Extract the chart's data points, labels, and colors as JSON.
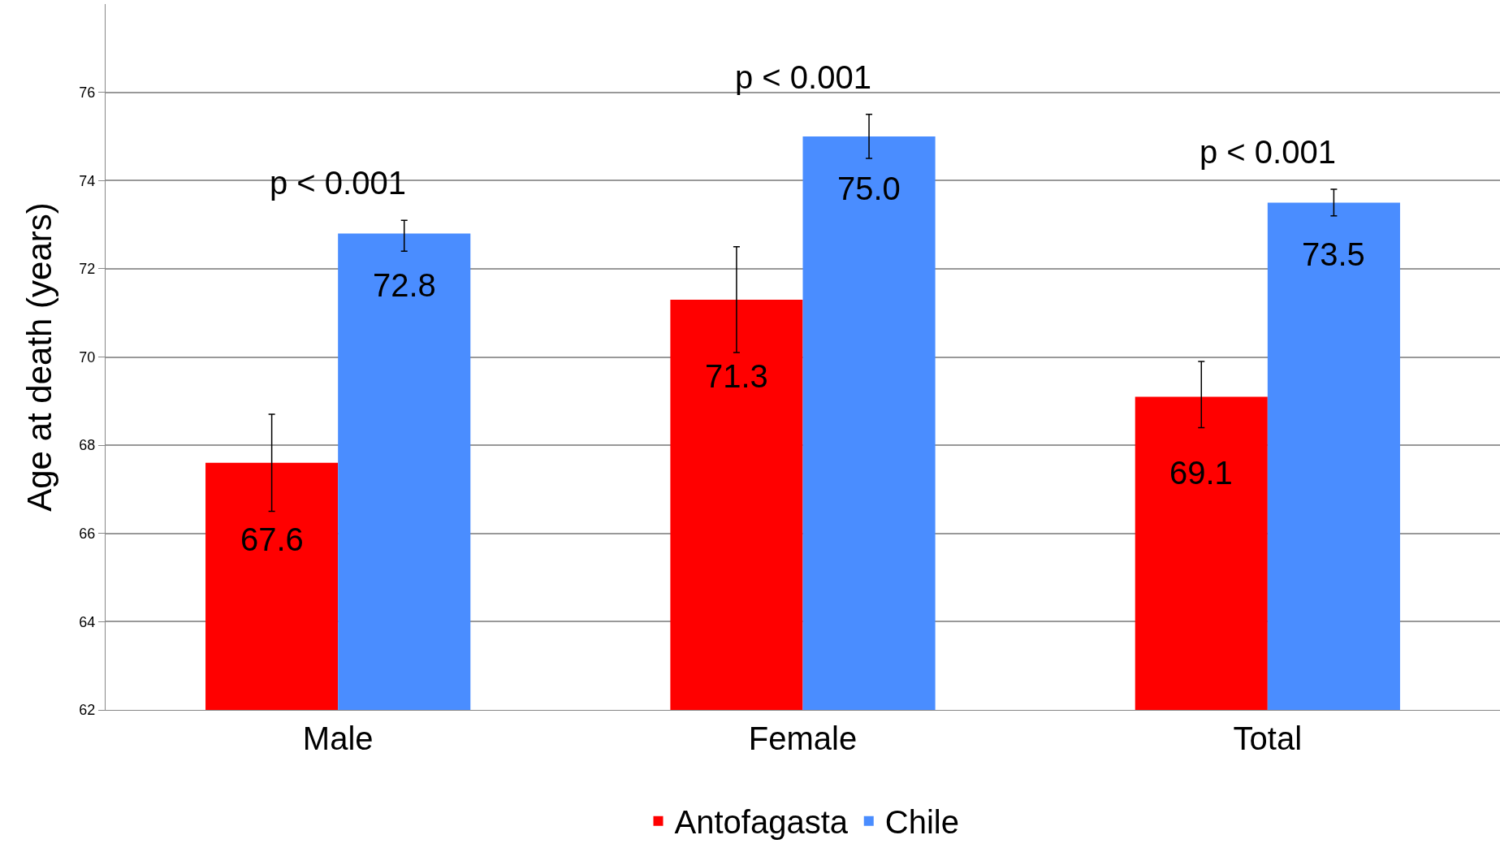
{
  "chart_data": {
    "type": "bar",
    "ylabel": "Age at death (years)",
    "categories": [
      "Male",
      "Female",
      "Total"
    ],
    "series": [
      {
        "name": "Antofagasta",
        "color": "#ff0000",
        "values": [
          67.6,
          71.3,
          69.1
        ],
        "value_labels": [
          "67.6",
          "71.3",
          "69.1"
        ],
        "errors": [
          [
            66.5,
            68.7
          ],
          [
            70.1,
            72.5
          ],
          [
            68.4,
            69.9
          ]
        ]
      },
      {
        "name": "Chile",
        "color": "#4a8dff",
        "values": [
          72.8,
          75.0,
          73.5
        ],
        "value_labels": [
          "72.8",
          "75.0",
          "73.5"
        ],
        "errors": [
          [
            72.4,
            73.1
          ],
          [
            74.5,
            75.5
          ],
          [
            73.2,
            73.8
          ]
        ]
      }
    ],
    "ylim": [
      62,
      78
    ],
    "yticks": [
      62,
      64,
      66,
      68,
      70,
      72,
      74,
      76
    ],
    "grid": "y",
    "legend": "bottom",
    "annotations": [
      "p < 0.001",
      "p < 0.001",
      "p < 0.001"
    ]
  }
}
